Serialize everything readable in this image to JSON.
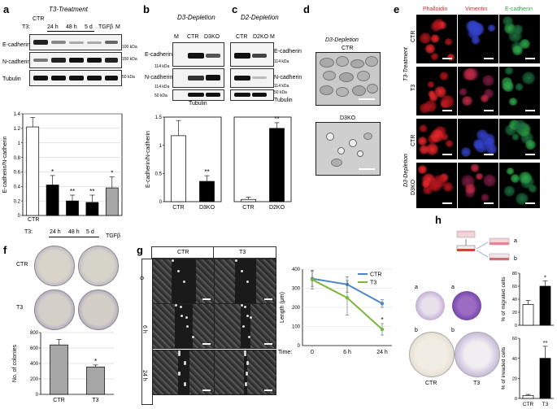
{
  "panels": {
    "a": {
      "label": "a",
      "title": "T3-Treatment",
      "row_ctr": "CTR",
      "row_t3": "T3:",
      "lanes": [
        "24 h",
        "48 h",
        "5 d",
        "TGFβ",
        "M"
      ],
      "blot_rows": [
        "E-cadherin",
        "N-cadherin",
        "Tubulin"
      ],
      "mw": [
        "100 kDa",
        "150 kDa",
        "50 kDa"
      ],
      "chart_ylabel": "E-cadherin/N-cadherin",
      "x_ctr": "CTR",
      "x_t3": "T3:",
      "x_lanes": [
        "24 h",
        "48 h",
        "5 d"
      ],
      "x_tgf": "TGFβ",
      "yticks": [
        "0",
        "0.2",
        "0.4",
        "0.6",
        "0.8",
        "1",
        "1.2",
        "1.4"
      ],
      "sig": [
        "*",
        "**",
        "**",
        "*"
      ]
    },
    "b": {
      "label": "b",
      "title": "D3-Depletion",
      "lanes": [
        "M",
        "CTR",
        "D3KO"
      ],
      "blot_rows": [
        "E-cadherin",
        "N-cadherin",
        "Tubulin"
      ],
      "mw": [
        "114 kDa",
        "114 kDa",
        "50 kDa"
      ],
      "chart_ylabel": "E-cadherin/N-cadherin",
      "yticks": [
        "0",
        "0.5",
        "1",
        "1.5"
      ],
      "x": [
        "CTR",
        "D3KO"
      ],
      "sig": "**"
    },
    "c": {
      "label": "c",
      "title": "D2-Depletion",
      "lanes": [
        "CTR",
        "D2KO",
        "M"
      ],
      "blot_rows": [
        "E-cadherin",
        "N-cadherin",
        "Tubulin"
      ],
      "mw": [
        "114 kDa",
        "114 kDa",
        "50 kDa"
      ],
      "x": [
        "CTR",
        "D2KO"
      ],
      "sig": "**"
    },
    "d": {
      "label": "d",
      "title": "D3-Depletion",
      "img1": "CTR",
      "img2": "D3KO"
    },
    "e": {
      "label": "e",
      "channels": [
        "Phalloidin",
        "Vimentin",
        "E-cadherin"
      ],
      "groups": [
        "T3-Treatment",
        "D3-Depletion"
      ],
      "rows": [
        "CTR",
        "T3",
        "CTR",
        "D3KO"
      ]
    },
    "f": {
      "label": "f",
      "rows": [
        "CTR",
        "T3"
      ],
      "chart_ylabel": "No. of colonies",
      "yticks": [
        "0",
        "200",
        "400",
        "600",
        "800"
      ],
      "x": [
        "CTR",
        "T3"
      ],
      "sig": "*"
    },
    "g": {
      "label": "g",
      "cols": [
        "CTR",
        "T3"
      ],
      "rows": [
        "0",
        "6 h",
        "24 h"
      ],
      "chart_ylabel": "Length (μm)",
      "yticks": [
        "0",
        "100",
        "200",
        "300",
        "400"
      ],
      "xlabel": "Time:",
      "xticks": [
        "0",
        "6 h",
        "24 h"
      ],
      "legend": [
        "CTR",
        "T3"
      ],
      "sig": "*"
    },
    "h": {
      "label": "h",
      "schema": [
        "a",
        "b"
      ],
      "plate_labels": [
        "a",
        "a",
        "b",
        "b"
      ],
      "x": [
        "CTR",
        "T3"
      ],
      "chart1_ylabel": "% of migrated cells",
      "chart1_yticks": [
        "0",
        "20",
        "40",
        "60",
        "80"
      ],
      "chart2_ylabel": "% of invaded cells",
      "chart2_yticks": [
        "0",
        "20",
        "40",
        "60"
      ],
      "sig1": "*",
      "sig2": "**"
    }
  },
  "colors": {
    "phalloidin": "#e8262c",
    "vimentin": "#e8262c",
    "ecadherin": "#2ea84a",
    "ctr_line": "#4a86c8",
    "t3_line": "#7ab83a",
    "gray_bar": "#a6a6a6",
    "black_bar": "#000000"
  },
  "chart_data": [
    {
      "type": "bar",
      "panel": "a",
      "categories": [
        "CTR",
        "24 h",
        "48 h",
        "5 d",
        "TGFβ"
      ],
      "values": [
        1.22,
        0.42,
        0.2,
        0.18,
        0.38
      ],
      "errors": [
        0.13,
        0.13,
        0.08,
        0.1,
        0.15
      ],
      "ylabel": "E-cadherin/N-cadherin",
      "ylim": [
        0,
        1.4
      ]
    },
    {
      "type": "bar",
      "panel": "b",
      "categories": [
        "CTR",
        "D3KO"
      ],
      "values": [
        1.17,
        0.36
      ],
      "errors": [
        0.27,
        0.1
      ],
      "ylabel": "E-cadherin/N-cadherin",
      "ylim": [
        0,
        1.5
      ]
    },
    {
      "type": "bar",
      "panel": "c",
      "categories": [
        "CTR",
        "D2KO"
      ],
      "values": [
        0.04,
        1.3
      ],
      "errors": [
        0.04,
        0.1
      ],
      "ylim": [
        0,
        1.5
      ]
    },
    {
      "type": "bar",
      "panel": "f",
      "categories": [
        "CTR",
        "T3"
      ],
      "values": [
        640,
        355
      ],
      "errors": [
        70,
        25
      ],
      "ylabel": "No. of colonies",
      "ylim": [
        0,
        800
      ]
    },
    {
      "type": "line",
      "panel": "g",
      "x": [
        "0",
        "6 h",
        "24 h"
      ],
      "series": [
        {
          "name": "CTR",
          "values": [
            350,
            320,
            220
          ],
          "errors": [
            40,
            40,
            20
          ]
        },
        {
          "name": "T3",
          "values": [
            345,
            250,
            85
          ],
          "errors": [
            50,
            90,
            30
          ]
        }
      ],
      "ylabel": "Length (μm)",
      "ylim": [
        0,
        400
      ]
    },
    {
      "type": "bar",
      "panel": "h-migrated",
      "categories": [
        "CTR",
        "T3"
      ],
      "values": [
        32,
        60
      ],
      "errors": [
        6,
        8
      ],
      "ylabel": "% of migrated cells",
      "ylim": [
        0,
        80
      ]
    },
    {
      "type": "bar",
      "panel": "h-invaded",
      "categories": [
        "CTR",
        "T3"
      ],
      "values": [
        3,
        40
      ],
      "errors": [
        1,
        12
      ],
      "ylabel": "% of invaded cells",
      "ylim": [
        0,
        60
      ]
    }
  ]
}
